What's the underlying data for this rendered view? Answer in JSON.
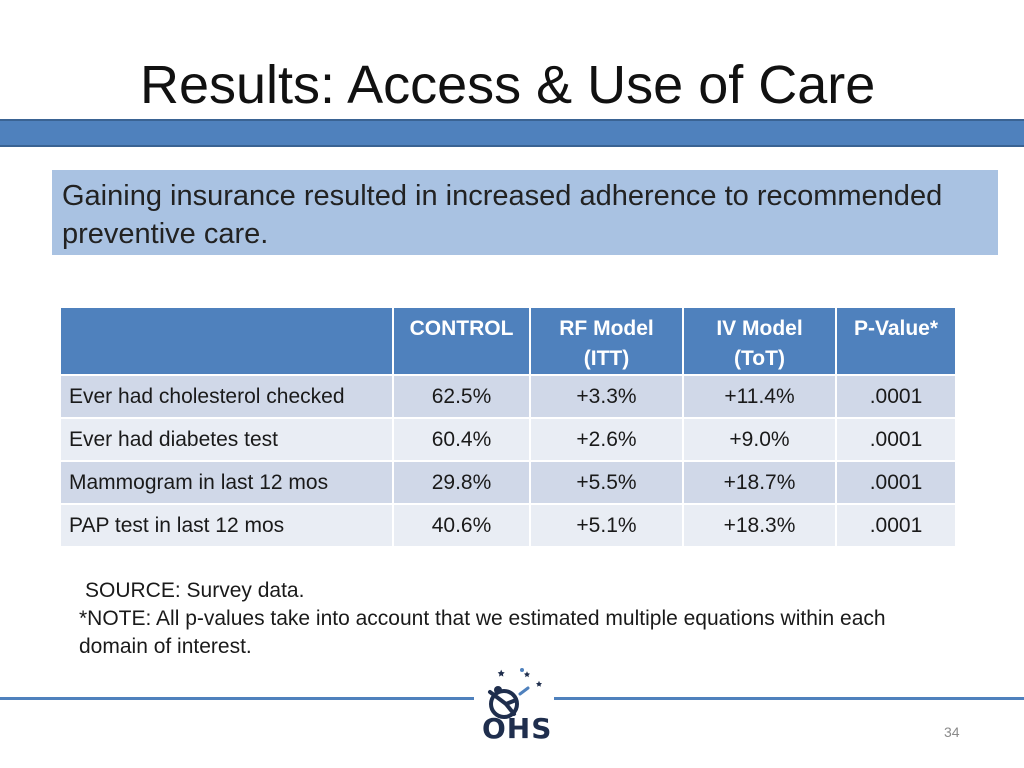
{
  "slide": {
    "title": "Results: Access & Use of Care",
    "callout": "Gaining insurance resulted in increased adherence to recommended preventive care.",
    "page_number": "34"
  },
  "table": {
    "headers": [
      "",
      "CONTROL",
      "RF Model\n(ITT)",
      "IV Model\n(ToT)",
      "P-Value*"
    ],
    "rows": [
      [
        "Ever had cholesterol checked",
        "62.5%",
        "+3.3%",
        "+11.4%",
        ".0001"
      ],
      [
        "Ever had diabetes test",
        "60.4%",
        "+2.6%",
        "+9.0%",
        ".0001"
      ],
      [
        "Mammogram in last 12 mos",
        "29.8%",
        "+5.5%",
        "+18.7%",
        ".0001"
      ],
      [
        "PAP test in last 12 mos",
        "40.6%",
        "+5.1%",
        "+18.3%",
        ".0001"
      ]
    ]
  },
  "notes": {
    "source": "SOURCE: Survey data.",
    "note": "*NOTE: All p-values take into account that we estimated multiple equations within each domain of interest."
  },
  "logo": {
    "text": "OHS",
    "icon": "ohs-logo-icon"
  },
  "colors": {
    "accent": "#4f81bd",
    "callout_bg": "#a9c2e2",
    "row_odd": "#d0d8e8",
    "row_even": "#e9edf4"
  }
}
